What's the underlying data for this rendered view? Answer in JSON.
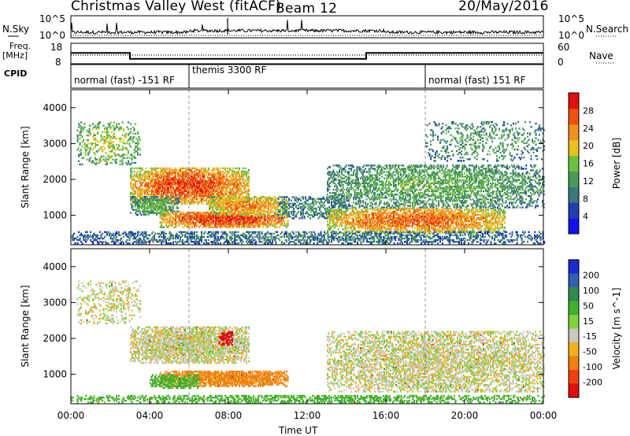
{
  "header": {
    "station_title": "Christmas Valley West (fitACF)",
    "beam": "Beam 12",
    "date": "20/May/2016"
  },
  "strips": {
    "nsky_label": "N.Sky",
    "nsearch_label": "N.Search",
    "noise_tick_top": "10^5",
    "noise_tick_bottom": "10^0",
    "freq_label_line1": "Freq.",
    "freq_label_line2": "[MHz]",
    "freq_tick_top": "18",
    "freq_tick_bottom": "8",
    "nave_label": "Nave",
    "nave_tick_top": "60",
    "nave_tick_bottom": "0",
    "cpid_label": "CPID"
  },
  "chart_data": [
    {
      "type": "heatmap",
      "panel": "power",
      "ylabel": "Slant Range [km]",
      "ylim": [
        180,
        4500
      ],
      "yticks": [
        "1000",
        "2000",
        "3000",
        "4000"
      ],
      "x_ticks": [
        "00:00",
        "04:00",
        "08:00",
        "12:00",
        "16:00",
        "20:00",
        "00:00"
      ],
      "xlabel": "Time UT",
      "colorbar": {
        "label": "Power [dB]",
        "ticks": [
          "4",
          "8",
          "12",
          "16",
          "20",
          "24",
          "28"
        ],
        "colors": [
          "#1010f0",
          "#2040b0",
          "#3c7878",
          "#4a9a5a",
          "#6cc040",
          "#e8c020",
          "#f09020",
          "#f05010",
          "#e01010"
        ]
      },
      "regions": [
        {
          "t0": 3.0,
          "t1": 9.0,
          "r0": 1300,
          "r1": 2300,
          "level": 0.85,
          "density": 0.9
        },
        {
          "t0": 3.0,
          "t1": 5.5,
          "r0": 1000,
          "r1": 1500,
          "level": 0.45,
          "density": 0.8
        },
        {
          "t0": 4.5,
          "t1": 11.0,
          "r0": 650,
          "r1": 1100,
          "level": 0.9,
          "density": 0.95
        },
        {
          "t0": 7.0,
          "t1": 11.0,
          "r0": 1000,
          "r1": 1500,
          "level": 0.75,
          "density": 0.85
        },
        {
          "t0": 0.3,
          "t1": 3.5,
          "r0": 2400,
          "r1": 3600,
          "level": 0.55,
          "density": 0.35
        },
        {
          "t0": 10.5,
          "t1": 14.0,
          "r0": 900,
          "r1": 1500,
          "level": 0.35,
          "density": 0.5
        },
        {
          "t0": 13.0,
          "t1": 22.0,
          "r0": 500,
          "r1": 1200,
          "level": 0.8,
          "density": 0.85
        },
        {
          "t0": 13.0,
          "t1": 24.0,
          "r0": 1200,
          "r1": 2400,
          "level": 0.45,
          "density": 0.6
        },
        {
          "t0": 18.0,
          "t1": 24.0,
          "r0": 2500,
          "r1": 3600,
          "level": 0.4,
          "density": 0.25
        },
        {
          "t0": 0.0,
          "t1": 24.0,
          "r0": 200,
          "r1": 550,
          "level": 0.3,
          "density": 0.55
        }
      ]
    },
    {
      "type": "heatmap",
      "panel": "velocity",
      "ylabel": "Slant Range [km]",
      "ylim": [
        180,
        4500
      ],
      "yticks": [
        "1000",
        "2000",
        "3000",
        "4000"
      ],
      "x_ticks": [
        "00:00",
        "04:00",
        "08:00",
        "12:00",
        "16:00",
        "20:00",
        "00:00"
      ],
      "xlabel": "Time UT",
      "colorbar": {
        "label": "Velocity [m s^-1]",
        "ticks": [
          "200",
          "100",
          "50",
          "15",
          "-15",
          "-50",
          "-100",
          "-200"
        ],
        "colors": [
          "#1a2ad0",
          "#3060b0",
          "#2e8a4e",
          "#40b030",
          "#80d040",
          "#c8c8c0",
          "#f0b020",
          "#f08010",
          "#f04010",
          "#e01010"
        ]
      },
      "regions": [
        {
          "t0": 3.0,
          "t1": 9.0,
          "r0": 1300,
          "r1": 2300,
          "velocity": 0,
          "density": 0.9
        },
        {
          "t0": 4.5,
          "t1": 11.0,
          "r0": 650,
          "r1": 1100,
          "velocity": -40,
          "density": 0.95
        },
        {
          "t0": 4.0,
          "t1": 6.5,
          "r0": 600,
          "r1": 1000,
          "velocity": 40,
          "density": 0.8
        },
        {
          "t0": 7.5,
          "t1": 8.2,
          "r0": 1800,
          "r1": 2200,
          "velocity": -200,
          "density": 0.8
        },
        {
          "t0": 13.0,
          "t1": 24.0,
          "r0": 500,
          "r1": 2200,
          "velocity": 0,
          "density": 0.65
        },
        {
          "t0": 0.3,
          "t1": 3.5,
          "r0": 2400,
          "r1": 3600,
          "velocity": 0,
          "density": 0.3
        },
        {
          "t0": 0.0,
          "t1": 24.0,
          "r0": 200,
          "r1": 400,
          "velocity": 40,
          "density": 0.6
        }
      ]
    },
    {
      "type": "line",
      "panel": "frequency",
      "x": [
        0,
        3.0,
        3.0,
        15.0,
        15.0,
        24
      ],
      "y": [
        13.3,
        13.3,
        10.4,
        10.4,
        13.3,
        13.3
      ],
      "ylim": [
        8,
        18
      ]
    },
    {
      "type": "table",
      "panel": "cpid",
      "segments": [
        {
          "start": 0.0,
          "end": 6.0,
          "label": "normal (fast) -151 RF"
        },
        {
          "start": 6.0,
          "end": 18.0,
          "label": "themis 3300 RF"
        },
        {
          "start": 18.0,
          "end": 24.0,
          "label": "normal (fast) 151 RF"
        }
      ]
    }
  ]
}
